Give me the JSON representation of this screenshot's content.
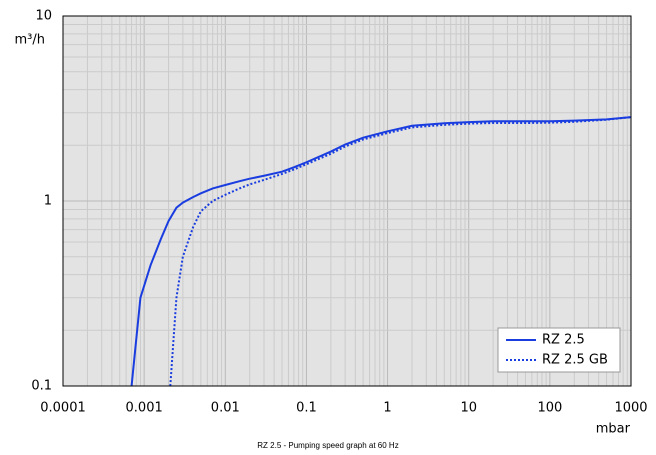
{
  "chart_data": {
    "type": "line",
    "caption": "RZ 2.5 - Pumping speed graph at 60 Hz",
    "y_label": "m³/h",
    "x_label": "mbar",
    "x_log": true,
    "y_log": true,
    "grid": true,
    "minor_grid": true,
    "xlim": [
      0.0001,
      1000
    ],
    "ylim": [
      0.1,
      10
    ],
    "xticks": [
      0.0001,
      0.001,
      0.01,
      0.1,
      1,
      10,
      100,
      1000
    ],
    "yticks": [
      0.1,
      1,
      10
    ],
    "legend": "lower right",
    "series": [
      {
        "name": "RZ 2.5",
        "color": "#1a3de0",
        "style": "solid",
        "x": [
          0.0007,
          0.0009,
          0.0012,
          0.0016,
          0.002,
          0.0025,
          0.003,
          0.004,
          0.005,
          0.007,
          0.01,
          0.015,
          0.02,
          0.03,
          0.05,
          0.07,
          0.1,
          0.2,
          0.3,
          0.5,
          1,
          2,
          5,
          10,
          20,
          50,
          100,
          200,
          500,
          1000
        ],
        "values": [
          0.1,
          0.3,
          0.45,
          0.62,
          0.78,
          0.92,
          0.98,
          1.05,
          1.1,
          1.17,
          1.22,
          1.28,
          1.32,
          1.37,
          1.44,
          1.52,
          1.62,
          1.85,
          2.02,
          2.2,
          2.38,
          2.55,
          2.63,
          2.67,
          2.7,
          2.7,
          2.7,
          2.72,
          2.76,
          2.84
        ]
      },
      {
        "name": "RZ 2.5 GB",
        "color": "#1a3de0",
        "style": "dotted",
        "x": [
          0.0021,
          0.0025,
          0.003,
          0.004,
          0.005,
          0.007,
          0.01,
          0.015,
          0.02,
          0.03,
          0.05,
          0.07,
          0.1,
          0.2,
          0.3,
          0.5,
          1,
          2,
          5,
          10,
          20,
          50,
          100,
          200,
          500,
          1000
        ],
        "values": [
          0.1,
          0.3,
          0.5,
          0.72,
          0.88,
          1.0,
          1.08,
          1.17,
          1.23,
          1.3,
          1.4,
          1.48,
          1.58,
          1.8,
          1.97,
          2.15,
          2.33,
          2.5,
          2.58,
          2.62,
          2.64,
          2.64,
          2.65,
          2.68,
          2.75,
          2.84
        ]
      }
    ]
  }
}
